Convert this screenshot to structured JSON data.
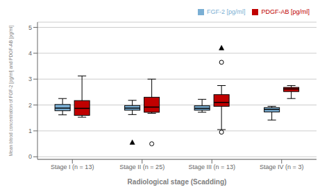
{
  "chart_data": {
    "type": "box",
    "title": "",
    "xlabel": "Radiological stage (Scadding)",
    "ylabel": "Mean blood concentration of FGF-2 [pg/ml] and PDGF-AB [pg/ml]",
    "categories": [
      "Stage I (n = 13)",
      "Stage II (n = 25)",
      "Stage III (n = 13)",
      "Stage IV (n = 3)"
    ],
    "ylim": [
      -0.1,
      5.2
    ],
    "yticks": [
      0,
      1,
      2,
      3,
      4,
      5
    ],
    "grid": true,
    "legend": "upper right",
    "series": [
      {
        "name": "FGF-2 [pg/ml]",
        "color": "#7BAFD4",
        "boxes": [
          {
            "whislo": 1.62,
            "q1": 1.78,
            "med": 1.88,
            "q3": 2.02,
            "whishi": 2.25
          },
          {
            "whislo": 1.63,
            "q1": 1.8,
            "med": 1.88,
            "q3": 1.98,
            "whishi": 2.18
          },
          {
            "whislo": 1.72,
            "q1": 1.8,
            "med": 1.87,
            "q3": 1.97,
            "whishi": 2.22
          },
          {
            "whislo": 1.42,
            "q1": 1.73,
            "med": 1.83,
            "q3": 1.9,
            "whishi": 1.95
          }
        ],
        "outliers": [
          {
            "marker": "triangle",
            "values": [
              [],
              [
                0.55
              ],
              [],
              []
            ]
          }
        ]
      },
      {
        "name": "PDGF-AB [pg/ml]",
        "color": "#C00000",
        "boxes": [
          {
            "whislo": 1.53,
            "q1": 1.6,
            "med": 1.87,
            "q3": 2.17,
            "whishi": 3.12
          },
          {
            "whislo": 1.68,
            "q1": 1.72,
            "med": 1.92,
            "q3": 2.3,
            "whishi": 3.0
          },
          {
            "whislo": 1.05,
            "q1": 1.95,
            "med": 2.1,
            "q3": 2.4,
            "whishi": 2.75
          },
          {
            "whislo": 2.25,
            "q1": 2.52,
            "med": 2.62,
            "q3": 2.68,
            "whishi": 2.75
          }
        ],
        "outliers": [
          {
            "marker": "circle_open",
            "values": [
              [],
              [
                0.5
              ],
              [
                0.95
              ],
              []
            ]
          },
          {
            "marker": "triangle",
            "values": [
              [],
              [],
              [
                4.2
              ],
              []
            ]
          },
          {
            "marker": "circle_open",
            "values": [
              [],
              [],
              [
                3.65
              ],
              []
            ]
          }
        ]
      }
    ]
  }
}
